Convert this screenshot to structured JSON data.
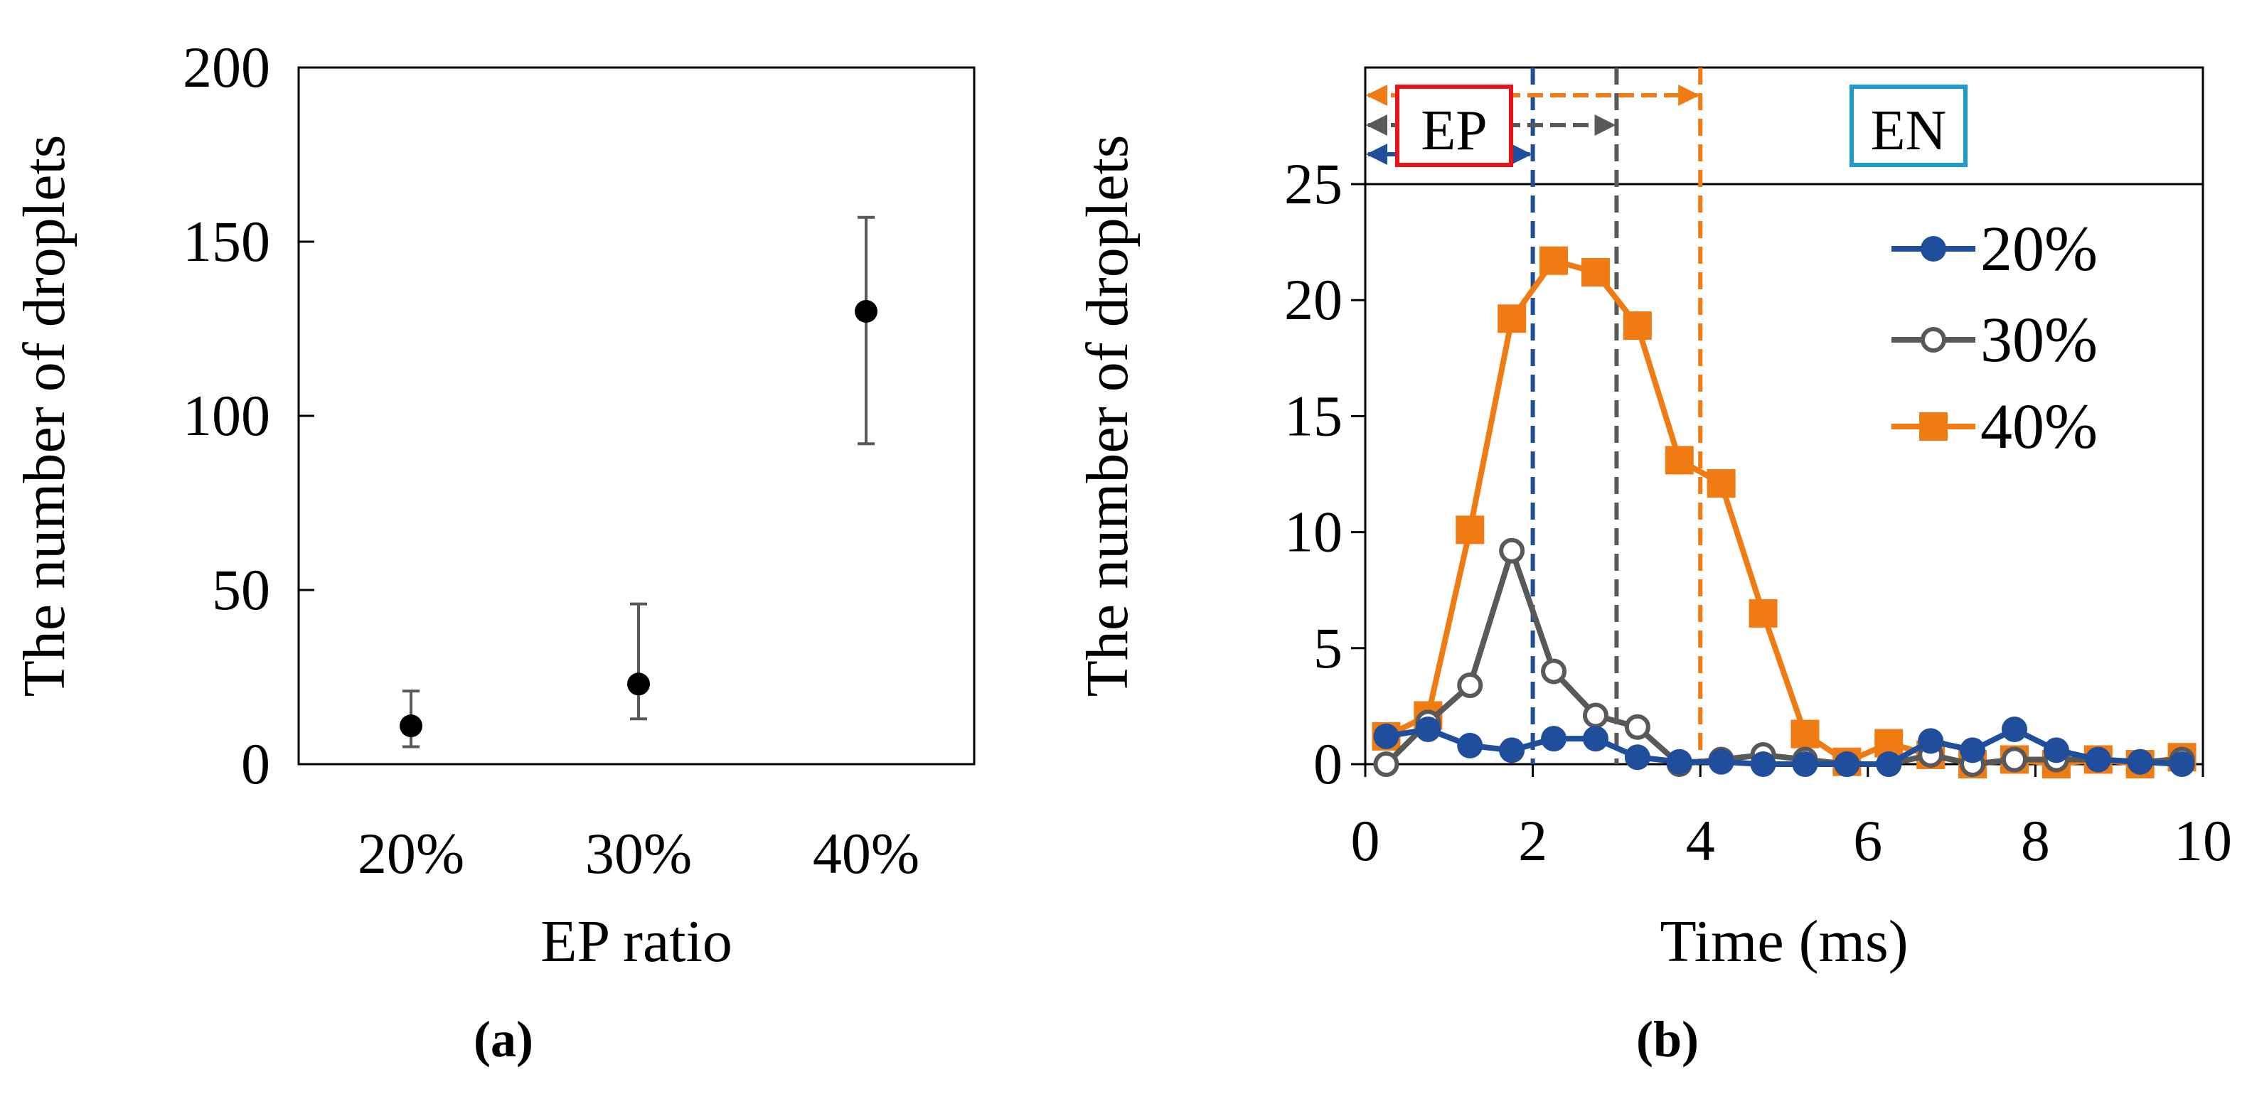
{
  "chart_data": [
    {
      "panel": "(a)",
      "type": "scatter",
      "title": "",
      "xlabel": "EP ratio",
      "ylabel": "The number of droplets",
      "ylim": [
        0,
        200
      ],
      "yticks": [
        "0",
        "50",
        "100",
        "150",
        "200"
      ],
      "categories": [
        "20%",
        "30%",
        "40%"
      ],
      "values": [
        11,
        23,
        130
      ],
      "err_high": [
        21,
        46,
        157
      ],
      "err_low": [
        5,
        13,
        92
      ],
      "grid": false,
      "colors": {
        "marker": "#000000",
        "errorbar": "#595959"
      }
    },
    {
      "panel": "(b)",
      "type": "line",
      "title": "",
      "xlabel": "Time (ms)",
      "ylabel": "The number of droplets",
      "xlim": [
        0,
        10
      ],
      "ylim": [
        0,
        25
      ],
      "xticks": [
        "0",
        "2",
        "4",
        "6",
        "8",
        "10"
      ],
      "yticks": [
        "0",
        "5",
        "10",
        "15",
        "20",
        "25"
      ],
      "x": [
        0.25,
        0.75,
        1.25,
        1.75,
        2.25,
        2.75,
        3.25,
        3.75,
        4.25,
        4.75,
        5.25,
        5.75,
        6.25,
        6.75,
        7.25,
        7.75,
        8.25,
        8.75,
        9.25,
        9.75
      ],
      "series": [
        {
          "name": "20%",
          "color": "#1f4e9c",
          "marker": "circle-filled",
          "values": [
            1.2,
            1.5,
            0.8,
            0.6,
            1.1,
            1.1,
            0.3,
            0.1,
            0.1,
            0.0,
            0.0,
            0.0,
            0.0,
            1.0,
            0.6,
            1.5,
            0.6,
            0.2,
            0.1,
            0.0
          ]
        },
        {
          "name": "30%",
          "color": "#595959",
          "marker": "circle-open",
          "values": [
            0.0,
            1.8,
            3.4,
            9.2,
            4.0,
            2.1,
            1.6,
            0.0,
            0.2,
            0.4,
            0.2,
            0.0,
            0.0,
            0.4,
            0.0,
            0.2,
            0.2,
            0.2,
            0.1,
            0.2
          ]
        },
        {
          "name": "40%",
          "color": "#f07b12",
          "marker": "square-filled",
          "values": [
            1.2,
            2.1,
            10.1,
            19.2,
            21.7,
            21.2,
            18.9,
            13.1,
            12.1,
            6.5,
            1.3,
            0.1,
            0.9,
            0.4,
            0.0,
            0.2,
            0.0,
            0.2,
            0.0,
            0.3
          ]
        }
      ],
      "vlines": [
        {
          "x": 2,
          "color": "#1f4e9c"
        },
        {
          "x": 3,
          "color": "#595959"
        },
        {
          "x": 4,
          "color": "#f07b12"
        }
      ],
      "phase_labels": [
        {
          "text": "EP",
          "box_color": "#e8141b"
        },
        {
          "text": "EN",
          "box_color": "#1d9ad6"
        }
      ],
      "legend": "top-right",
      "grid": false
    }
  ]
}
